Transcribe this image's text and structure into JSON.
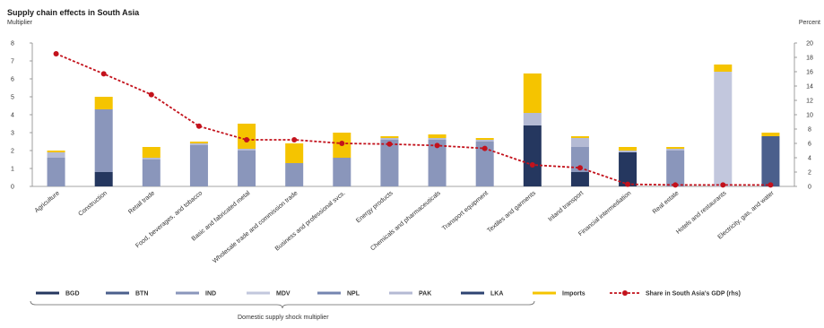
{
  "chart_data": {
    "type": "bar",
    "stacked": true,
    "title": "Supply chain effects in South Asia",
    "ylabel_left": "Multiplier",
    "ylabel_right": "Percent",
    "ylim_left": [
      0,
      8
    ],
    "ylim_right": [
      0,
      20
    ],
    "yticks_left": [
      "0",
      "1",
      "2",
      "3",
      "4",
      "5",
      "6",
      "7",
      "8"
    ],
    "yticks_right": [
      "0",
      "2",
      "4",
      "6",
      "8",
      "10",
      "12",
      "14",
      "16",
      "18",
      "20"
    ],
    "grid": false,
    "legend_position": "bottom",
    "categories": [
      "Agriculture",
      "Construction",
      "Retail trade",
      "Food, beverages, and tobacco",
      "Basic and fabricated metal",
      "Wholesale trade and commission trade",
      "Business and professional svcs.",
      "Energy products",
      "Chemicals and pharmaceuticals",
      "Transport equipment",
      "Textiles and garments",
      "Inland transport",
      "Financial intermediation",
      "Real estate",
      "Hotels and restaurants",
      "Electricity, gas, and water"
    ],
    "series": [
      {
        "name": "BGD",
        "color": "#25375f",
        "values": [
          0,
          0.8,
          0,
          0,
          0,
          0,
          0,
          0,
          0,
          0,
          3.4,
          0.8,
          1.9,
          0,
          0,
          0
        ]
      },
      {
        "name": "BTN",
        "color": "#4b5f8c",
        "values": [
          0,
          0,
          0,
          0,
          0,
          0,
          0,
          0,
          0,
          0,
          0,
          0,
          0,
          0,
          0,
          2.8
        ]
      },
      {
        "name": "IND",
        "color": "#8a96bb",
        "values": [
          1.6,
          3.5,
          1.5,
          2.3,
          2.0,
          1.3,
          1.6,
          2.6,
          2.6,
          2.5,
          0,
          1.4,
          0,
          2.0,
          0,
          0
        ]
      },
      {
        "name": "MDV",
        "color": "#c2c7dd",
        "values": [
          0,
          0,
          0,
          0,
          0,
          0,
          0,
          0,
          0,
          0,
          0,
          0,
          0,
          0,
          6.4,
          0
        ]
      },
      {
        "name": "NPL",
        "color": "#7585b0",
        "values": [
          0,
          0,
          0,
          0,
          0,
          0,
          0,
          0,
          0,
          0,
          0,
          0,
          0,
          0,
          0,
          0
        ]
      },
      {
        "name": "PAK",
        "color": "#b4bad4",
        "values": [
          0.3,
          0,
          0.1,
          0.1,
          0.1,
          0,
          0,
          0.1,
          0.1,
          0.1,
          0.7,
          0.5,
          0.1,
          0.1,
          0,
          0
        ]
      },
      {
        "name": "LKA",
        "color": "#2e4372",
        "values": [
          0,
          0,
          0,
          0,
          0,
          0,
          0,
          0,
          0,
          0,
          0,
          0,
          0,
          0,
          0,
          0
        ]
      },
      {
        "name": "Imports",
        "color": "#f5c400",
        "values": [
          0.1,
          0.7,
          0.6,
          0.1,
          1.4,
          1.1,
          1.4,
          0.1,
          0.2,
          0.1,
          2.2,
          0.1,
          0.2,
          0.1,
          0.4,
          0.2
        ]
      }
    ],
    "line_series": {
      "name": "Share in South Asia's GDP (rhs)",
      "color": "#c3121c",
      "values": [
        18.5,
        15.7,
        12.8,
        8.4,
        6.5,
        6.5,
        6.0,
        5.9,
        5.7,
        5.3,
        3.0,
        2.6,
        0.3,
        0.2,
        0.2,
        0.2
      ]
    },
    "legend_group_label": "Domestic supply shock multiplier"
  }
}
